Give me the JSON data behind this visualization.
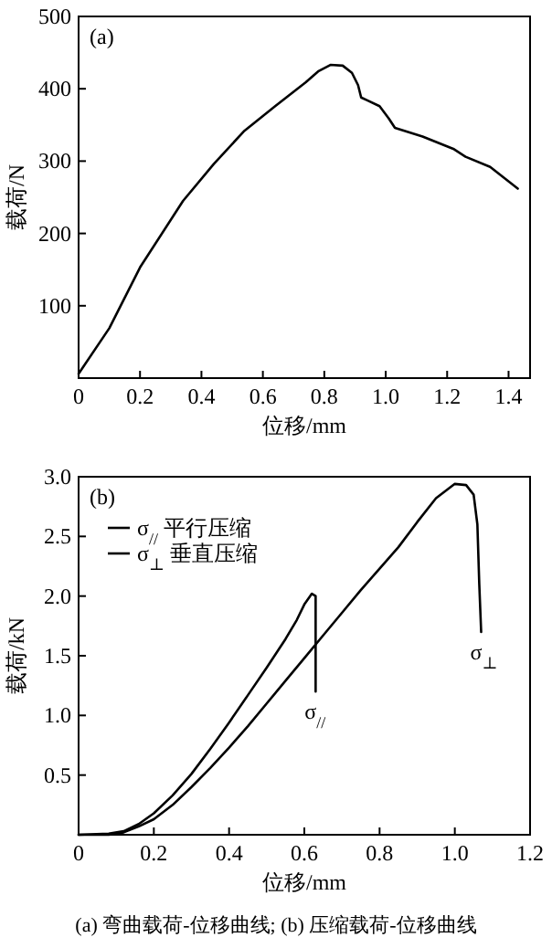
{
  "chart_data": [
    {
      "type": "line",
      "title": "(a)",
      "xlabel": "位移/mm",
      "ylabel": "载荷/N",
      "xlim": [
        0,
        1.47
      ],
      "ylim": [
        0,
        500
      ],
      "xticks": [
        0,
        0.2,
        0.4,
        0.6,
        0.8,
        {
          "value": 1,
          "label": "1.0"
        },
        1.2,
        1.4
      ],
      "yticks": [
        {
          "value": 0,
          "label": null
        },
        100,
        200,
        300,
        400,
        500
      ],
      "grid": false,
      "marker": "none",
      "line_style": "solid",
      "series": [
        {
          "color": "#000000",
          "x": [
            0,
            0.1,
            0.2,
            0.34,
            0.44,
            0.54,
            0.64,
            0.74,
            0.78,
            0.82,
            0.86,
            0.89,
            0.91,
            0.92,
            0.94,
            0.98,
            1.01,
            1.03,
            1.12,
            1.22,
            1.26,
            1.34,
            1.43
          ],
          "values": [
            6,
            69,
            153,
            245,
            296,
            342,
            376,
            409,
            424,
            433,
            432,
            422,
            405,
            388,
            384,
            376,
            359,
            346,
            334,
            317,
            306,
            292,
            262
          ]
        }
      ]
    },
    {
      "type": "line",
      "title": "(b)",
      "xlabel": "位移/mm",
      "ylabel": "载荷/kN",
      "xlim": [
        0,
        1.2
      ],
      "ylim": [
        0,
        3
      ],
      "xticks": [
        0,
        0.2,
        0.4,
        0.6,
        0.8,
        {
          "value": 1,
          "label": "1.0"
        },
        1.2
      ],
      "yticks": [
        {
          "value": 0,
          "label": null
        },
        0.5,
        {
          "value": 1,
          "label": "1.0"
        },
        1.5,
        {
          "value": 2,
          "label": "2.0"
        },
        2.5,
        {
          "value": 3,
          "label": "3.0"
        }
      ],
      "grid": false,
      "marker": "none",
      "line_style": "solid",
      "legend": "top left",
      "series": [
        {
          "name": "σ$_{//}$ 平行压缩",
          "color": "#000000",
          "x": [
            0,
            0.08,
            0.12,
            0.16,
            0.2,
            0.25,
            0.3,
            0.35,
            0.4,
            0.45,
            0.5,
            0.55,
            0.58,
            0.6,
            0.62,
            0.63,
            0.63
          ],
          "values": [
            0,
            0.01,
            0.03,
            0.09,
            0.18,
            0.33,
            0.51,
            0.72,
            0.94,
            1.17,
            1.4,
            1.64,
            1.8,
            1.93,
            2.02,
            2.0,
            1.2
          ]
        },
        {
          "name": "σ$_{⊥}$ 垂直压缩",
          "color": "#000000",
          "x": [
            0,
            0.08,
            0.12,
            0.16,
            0.2,
            0.25,
            0.3,
            0.35,
            0.4,
            0.45,
            0.5,
            0.55,
            0.6,
            0.65,
            0.7,
            0.75,
            0.8,
            0.85,
            0.9,
            0.95,
            1.0,
            1.03,
            1.05,
            1.06,
            1.065,
            1.07
          ],
          "values": [
            0,
            0,
            0.02,
            0.07,
            0.13,
            0.25,
            0.4,
            0.56,
            0.73,
            0.91,
            1.1,
            1.29,
            1.48,
            1.67,
            1.86,
            2.05,
            2.23,
            2.41,
            2.62,
            2.82,
            2.94,
            2.93,
            2.85,
            2.6,
            2.1,
            1.7
          ]
        }
      ],
      "annotations": [
        {
          "text": "σ$_{//}$",
          "x": 0.63,
          "y": 1.2
        },
        {
          "text": "σ$_{⊥}$",
          "x": 1.07,
          "y": 1.7
        },
        "(a) 弯曲载荷-位移曲线; (b) 压缩载荷-位移曲线"
      ]
    }
  ]
}
